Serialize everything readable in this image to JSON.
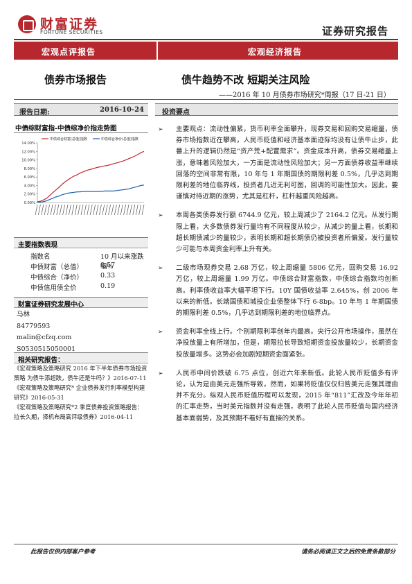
{
  "header": {
    "logo_cn": "财富证券",
    "logo_en": "FORTUNE SECURITIES",
    "title": "证券研究报告",
    "band_left": "宏观点评报告",
    "band_right": "宏观经济报告"
  },
  "report": {
    "type": "债券市场报告",
    "title": "债牛趋势不改 短期关注风险",
    "subtitle": "——2016 年 10 月债券市场研究*周报（17 日-21 日）",
    "date_label": "报告日期:",
    "date_value": "2016-10-24"
  },
  "chart": {
    "title": "中债综财富指-中债综净价指走势图",
    "chart_data": {
      "type": "line",
      "title": "中债综财富指-中债综净价指走势图",
      "y_ticks": [
        "0.00%",
        "2.00%",
        "4.00%",
        "6.00%",
        "8.00%",
        "10.00%",
        "12.00%",
        "14.00%"
      ],
      "ylim": [
        0,
        14
      ],
      "x_count": 36,
      "series": [
        {
          "name": "中债综合财富(总值)指数",
          "color": "#c1272d",
          "values": [
            0.2,
            0.3,
            0.6,
            1.0,
            1.6,
            2.3,
            2.9,
            3.5,
            4.2,
            4.8,
            5.3,
            5.8,
            6.2,
            6.5,
            6.9,
            7.2,
            7.5,
            7.7,
            7.9,
            8.1,
            8.3,
            8.4,
            8.6,
            8.7,
            8.9,
            9.1,
            9.3,
            9.5,
            9.7,
            10.0,
            10.3,
            10.6,
            10.9,
            11.3,
            11.7,
            12.0
          ]
        },
        {
          "name": "中债综合净价(总值)指数",
          "color": "#1f5fb0",
          "values": [
            0.1,
            0.1,
            0.2,
            0.4,
            0.7,
            1.0,
            1.3,
            1.5,
            1.8,
            2.0,
            2.2,
            2.3,
            2.4,
            2.5,
            2.5,
            2.6,
            2.6,
            2.6,
            2.6,
            2.6,
            2.6,
            2.6,
            2.7,
            2.7,
            2.7,
            2.7,
            2.8,
            2.9,
            3.0,
            3.1,
            3.2,
            3.4,
            3.6,
            3.8,
            4.0,
            4.1
          ]
        }
      ]
    }
  },
  "indices": {
    "title": "主要指数表现",
    "header": {
      "name": "指数名",
      "change": "10 月以来涨跌幅%"
    },
    "rows": [
      {
        "name": "中债财富（总值）",
        "value": "0.57"
      },
      {
        "name": "中债综合（净价）",
        "value": "0.33"
      },
      {
        "name": "中债信用债全价",
        "value": "0.19"
      }
    ]
  },
  "center": {
    "title": "财富证券研究发展中心",
    "name": "马林",
    "phone": "84779593",
    "email": "malin@cfzq.com",
    "cert": "S0530515050001"
  },
  "related": {
    "title": "相关研究报告：",
    "items": [
      "《宏观策略及策略研究 2016 年下半年债券市场投资策略 为债牛添超跌，债牛还是牛吗？》2016-07-11",
      "《宏观策略及策略研究* 企业债券发行利率模型构建研究》2016-05-31",
      "《宏观策略及策略研究*2 季度债券投资策略报告：拉长久期，择机布局高评级债券》2016-04-11"
    ]
  },
  "investment": {
    "title": "投资要点",
    "points": [
      "主要观点：流动性偏紧，货币利率全面攀升，现券交易和回购交易缩量，债券市场指数近在攀高，人民币贬值和经济基本面迹际均没有让债牛止步，此番上升的逻辑仍然是“资产荒+配置需求”。资金成本升高，债券交易缩量上涨，意味着风险加大，一方面是流动性风险加大；另一方面债券收益率继续回落的空间非常有限，10 年与 1 年期国债的期限利差 0.5%，几乎达到期限利差的地位临界线，投资者几近无利可图，回调的可能性加大。因此，要谨慎对待近期的涨势，尤其是杠杆，杠杆越重风险越高。",
      "本周各类债券发行额 6744.9 亿元，较上周减少了 2164.2 亿元。从发行期限上看，大多数债券发行量均有不同程度从较少，从减少的量上看，长期和超长期债减少的量较少，表明长期和超长期债仍被投资者所偏爱。发行量较少可能与本周资金利率上升有关。",
      "二级市场现券交易 2.68 万亿，较上周缩量 5806 亿元，回购交易 16.92 万亿，较上周缩量 1.99 万亿。中债综合财富指数，中债综合指数均创新高。利率债收益率大幅平坦下行。10Y 国债收益率 2.645%，创 2006 年以来的新低。长端国债和城投企业债整体下行 6-8bp。10 年与 1 年期国债的期限利差 0.5%，几乎达到期限利差的地位临界点。",
      "资金利率全线上行。个别期限利率创年内最高。央行公开市场操作，虽然在净投放量上有所增加，但是，期限拉长导致短期资金投放量较少，长期资金投放量增多。这势必会加剧短期资金面紧张。",
      "人民币中间价跌破 6.75 点位，创近六年来新低。此轮人民币贬值多有评论，认为是由美元走强所导致，然而，如果将贬值仅仅归咎美元走强其理由并不充分。纵观人民币贬值历程可以发现，2015 年“811”汇改及今年年初的汇率走势，当时美元指数并没有走强，表明了此轮人民币贬值与国内经济基本面弱势，及其预期不看好有直接的关系。"
    ]
  },
  "footer": {
    "left": "此报告仅供内部客户参考",
    "right": "请务必阅读正文之后的免责条款部分"
  }
}
